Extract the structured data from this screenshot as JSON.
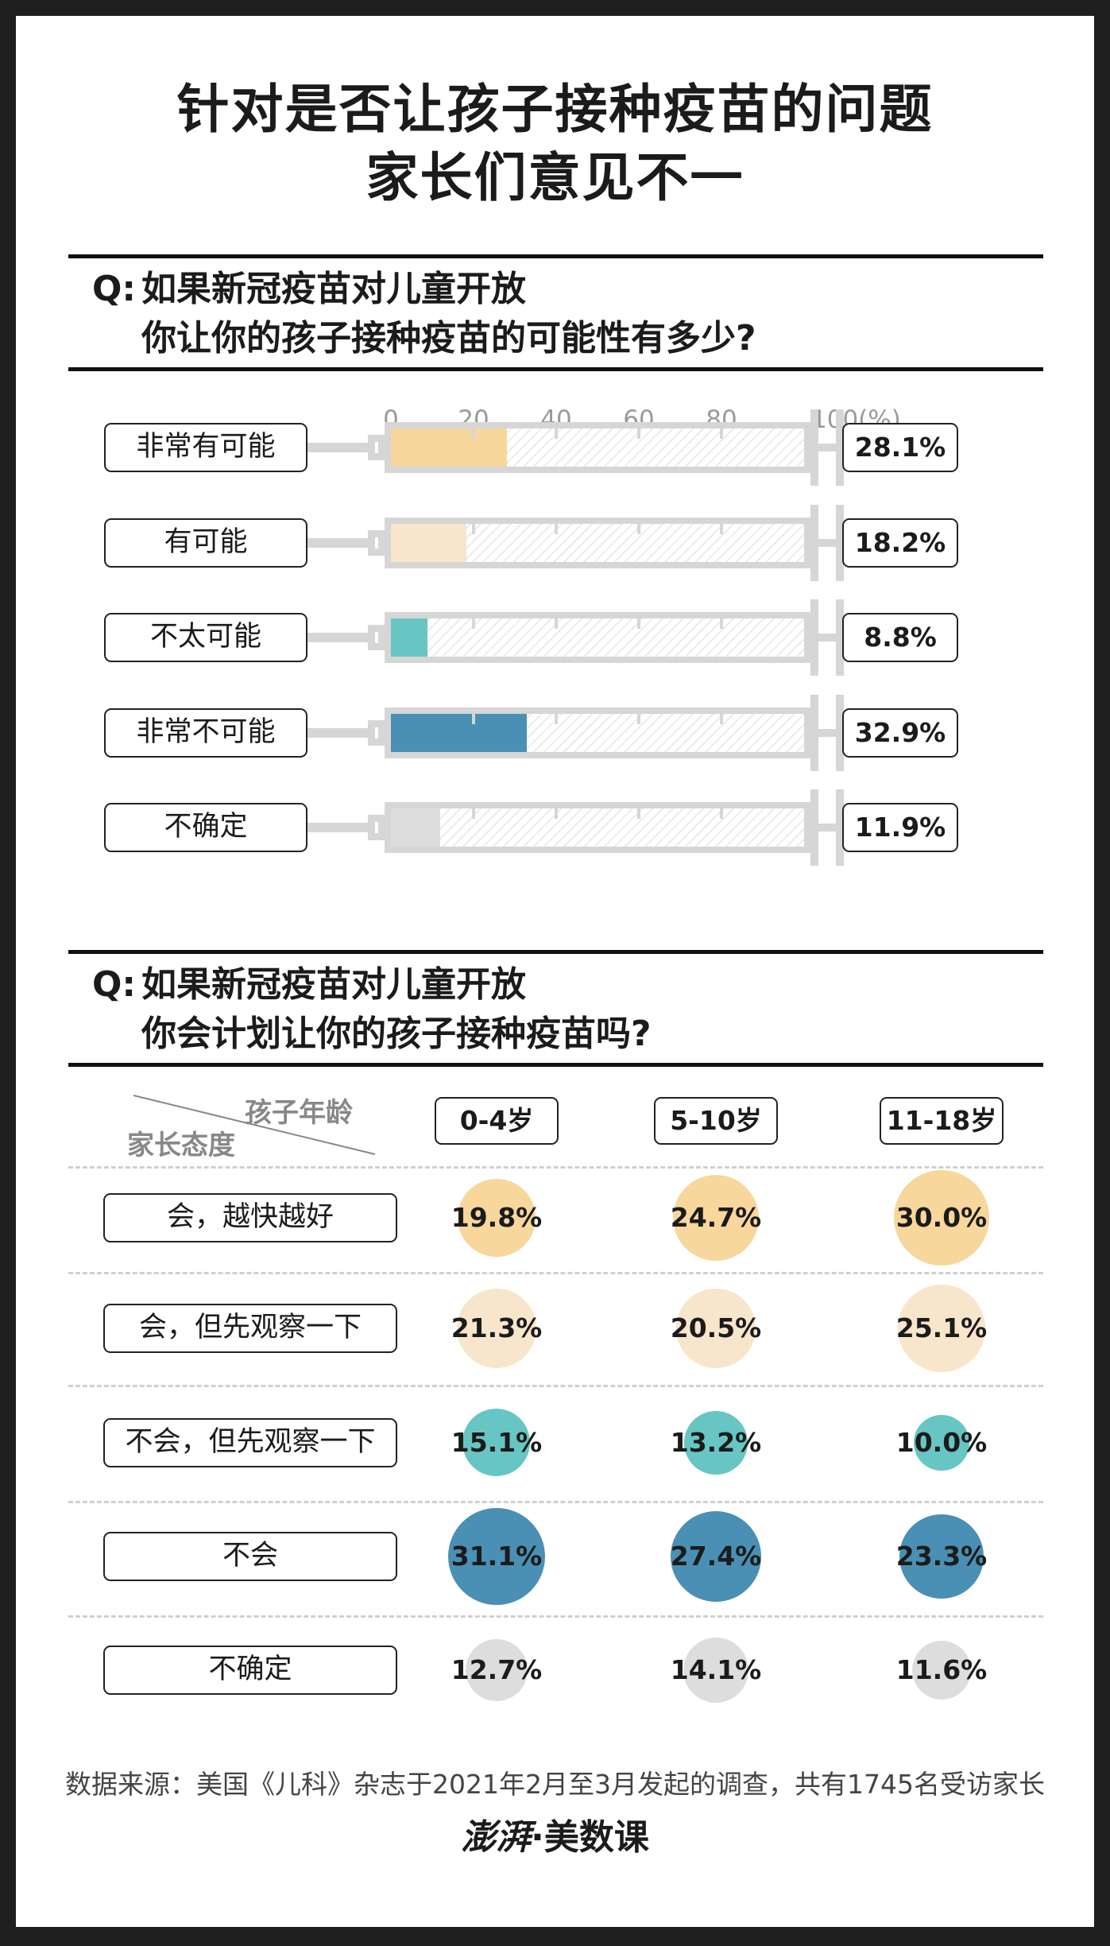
{
  "title": {
    "line1": "针对是否让孩子接种疫苗的问题",
    "line2": "家长们意见不一"
  },
  "section1": {
    "q_mark": "Q:",
    "question_line1": "如果新冠疫苗对儿童开放",
    "question_line2": "你让你的孩子接种疫苗的可能性有多少?"
  },
  "section2": {
    "q_mark": "Q:",
    "question_line1": "如果新冠疫苗对儿童开放",
    "question_line2": "你会计划让你的孩子接种疫苗吗?"
  },
  "footer": {
    "source": "数据来源：美国《儿科》杂志于2021年2月至3月发起的调查，共有1745名受访家长",
    "logo_a": "澎湃",
    "logo_dot": "·",
    "logo_b": "美数课"
  },
  "chart_data": [
    {
      "type": "bar",
      "axis_ticks": [
        "0",
        "20",
        "40",
        "60",
        "80",
        "100(%)"
      ],
      "xlim": [
        0,
        100
      ],
      "categories": [
        "非常有可能",
        "有可能",
        "不太可能",
        "非常不可能",
        "不确定"
      ],
      "values": [
        28.1,
        18.2,
        8.8,
        32.9,
        11.9
      ],
      "value_labels": [
        "28.1%",
        "18.2%",
        "8.8%",
        "32.9%",
        "11.9%"
      ],
      "colors": [
        "#f7d79c",
        "#f8e6cc",
        "#67c6c4",
        "#4a8fb4",
        "#dddddd"
      ]
    },
    {
      "type": "scatter",
      "header_top": "孩子年龄",
      "header_bottom": "家长态度",
      "columns": [
        "0-4岁",
        "5-10岁",
        "11-18岁"
      ],
      "rows": [
        "会，越快越好",
        "会，但先观察一下",
        "不会，但先观察一下",
        "不会",
        "不确定"
      ],
      "values": [
        [
          19.8,
          24.7,
          30.0
        ],
        [
          21.3,
          20.5,
          25.1
        ],
        [
          15.1,
          13.2,
          10.0
        ],
        [
          31.1,
          27.4,
          23.3
        ],
        [
          12.7,
          14.1,
          11.6
        ]
      ],
      "value_labels": [
        [
          "19.8%",
          "24.7%",
          "30.0%"
        ],
        [
          "21.3%",
          "20.5%",
          "25.1%"
        ],
        [
          "15.1%",
          "13.2%",
          "10.0%"
        ],
        [
          "31.1%",
          "27.4%",
          "23.3%"
        ],
        [
          "12.7%",
          "14.1%",
          "11.6%"
        ]
      ],
      "row_colors": [
        "#f7d79c",
        "#f8e6cc",
        "#67c6c4",
        "#4a8fb4",
        "#dddddd"
      ]
    }
  ]
}
